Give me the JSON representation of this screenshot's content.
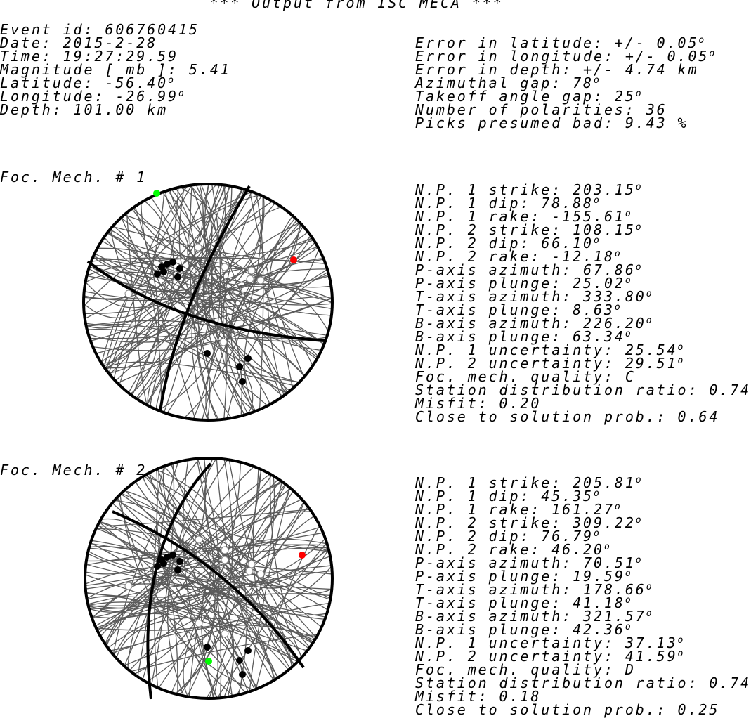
{
  "title": "*** Output from ISC_MECA ***",
  "event": [
    "Event id: 606760415",
    "Date: 2015-2-28",
    "Time: 19:27:29.59",
    "Magnitude [ mb ]: 5.41",
    {
      "text": "Latitude: -56.40",
      "sup": "o"
    },
    {
      "text": "Longitude: -26.99",
      "sup": "o"
    },
    "Depth: 101.00 km"
  ],
  "errors": [
    {
      "text": "Error in latitude: +/- 0.05",
      "sup": "o"
    },
    {
      "text": "Error in longitude: +/- 0.05",
      "sup": "o"
    },
    "Error in depth: +/- 4.74 km",
    {
      "text": "Azimuthal gap: 78",
      "sup": "o"
    },
    {
      "text": "Takeoff angle gap: 25",
      "sup": "o"
    },
    "Number of polarities: 36",
    "Picks presumed bad: 9.43 %"
  ],
  "mechanisms": [
    {
      "label": "Foc. Mech. # 1",
      "params": [
        {
          "text": "N.P. 1 strike: 203.15",
          "sup": "o"
        },
        {
          "text": "N.P. 1 dip: 78.88",
          "sup": "o"
        },
        {
          "text": "N.P. 1 rake: -155.61",
          "sup": "o"
        },
        {
          "text": "N.P. 2 strike: 108.15",
          "sup": "o"
        },
        {
          "text": "N.P. 2 dip: 66.10",
          "sup": "o"
        },
        {
          "text": "N.P. 2 rake: -12.18",
          "sup": "o"
        },
        {
          "text": "P-axis azimuth: 67.86",
          "sup": "o"
        },
        {
          "text": "P-axis plunge: 25.02",
          "sup": "o"
        },
        {
          "text": "T-axis azimuth: 333.80",
          "sup": "o"
        },
        {
          "text": "T-axis plunge: 8.63",
          "sup": "o"
        },
        {
          "text": "B-axis azimuth: 226.20",
          "sup": "o"
        },
        {
          "text": "B-axis plunge: 63.34",
          "sup": "o"
        },
        {
          "text": "N.P. 1 uncertainty: 25.54",
          "sup": "o"
        },
        {
          "text": "N.P. 2 uncertainty: 29.51",
          "sup": "o"
        },
        "Foc. mech. quality: C",
        "Station distribution ratio: 0.74",
        "Misfit: 0.20",
        "Close to solution prob.: 0.64"
      ]
    },
    {
      "label": "Foc. Mech. # 2",
      "params": [
        {
          "text": "N.P. 1 strike: 205.81",
          "sup": "o"
        },
        {
          "text": "N.P. 1 dip: 45.35",
          "sup": "o"
        },
        {
          "text": "N.P. 1 rake: 161.27",
          "sup": "o"
        },
        {
          "text": "N.P. 2 strike: 309.22",
          "sup": "o"
        },
        {
          "text": "N.P. 2 dip: 76.79",
          "sup": "o"
        },
        {
          "text": "N.P. 2 rake: 46.20",
          "sup": "o"
        },
        {
          "text": "P-axis azimuth: 70.51",
          "sup": "o"
        },
        {
          "text": "P-axis plunge: 19.59",
          "sup": "o"
        },
        {
          "text": "T-axis azimuth: 178.66",
          "sup": "o"
        },
        {
          "text": "T-axis plunge: 41.18",
          "sup": "o"
        },
        {
          "text": "B-axis azimuth: 321.57",
          "sup": "o"
        },
        {
          "text": "B-axis plunge: 42.36",
          "sup": "o"
        },
        {
          "text": "N.P. 1 uncertainty: 37.13",
          "sup": "o"
        },
        {
          "text": "N.P. 2 uncertainty: 41.59",
          "sup": "o"
        },
        "Foc. mech. quality: D",
        "Station distribution ratio: 0.74",
        "Misfit: 0.18",
        "Close to solution prob.: 0.25"
      ]
    }
  ]
}
